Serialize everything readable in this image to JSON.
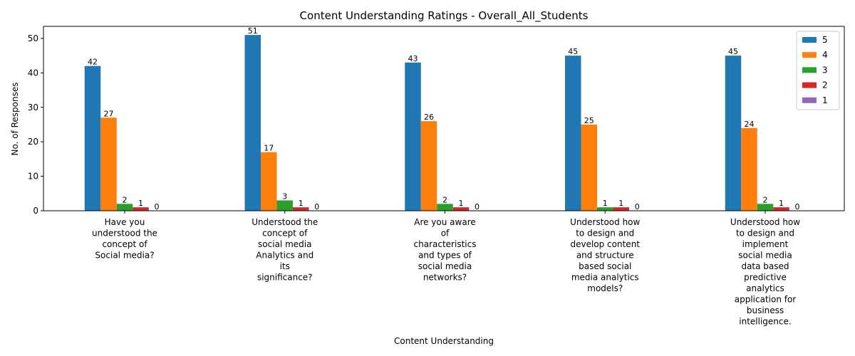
{
  "chart_data": {
    "type": "bar",
    "title": "Content Understanding Ratings - Overall_All_Students",
    "xlabel": "Content Understanding",
    "ylabel": "No. of Responses",
    "ylim": [
      0,
      53.5
    ],
    "yticks": [
      0,
      10,
      20,
      30,
      40,
      50
    ],
    "grid": false,
    "legend_position": "top-right",
    "categories": [
      [
        "Have you",
        "understood the",
        "concept of",
        "Social media?"
      ],
      [
        "Understood the",
        "concept of",
        "social media",
        "Analytics and",
        "its",
        "significance?"
      ],
      [
        "Are you aware",
        "of",
        "characteristics",
        "and types of",
        "social media",
        "networks?"
      ],
      [
        "Understood how",
        "to design and",
        "develop content",
        "and structure",
        "based social",
        "media analytics",
        "models?"
      ],
      [
        "Understood how",
        "to design and",
        "implement",
        "social media",
        "data based",
        "predictive",
        "analytics",
        "application for",
        "business",
        "intelligence."
      ]
    ],
    "series": [
      {
        "name": "5",
        "color": "#1f77b4",
        "values": [
          42,
          51,
          43,
          45,
          45
        ]
      },
      {
        "name": "4",
        "color": "#ff7f0e",
        "values": [
          27,
          17,
          26,
          25,
          24
        ]
      },
      {
        "name": "3",
        "color": "#2ca02c",
        "values": [
          2,
          3,
          2,
          1,
          2
        ]
      },
      {
        "name": "2",
        "color": "#d62728",
        "values": [
          1,
          1,
          1,
          1,
          1
        ]
      },
      {
        "name": "1",
        "color": "#9467bd",
        "values": [
          0,
          0,
          0,
          0,
          0
        ]
      }
    ]
  }
}
